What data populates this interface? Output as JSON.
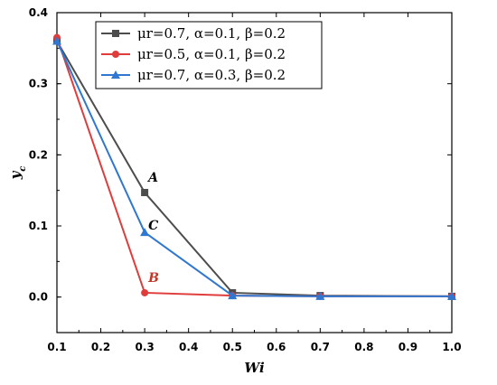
{
  "chart_data": {
    "type": "line",
    "xlabel": "Wi",
    "ylabel": "y_c",
    "xlim": [
      0.1,
      1.0
    ],
    "ylim": [
      -0.05,
      0.4
    ],
    "xticks": [
      "0.1",
      "0.2",
      "0.3",
      "0.4",
      "0.5",
      "0.6",
      "0.7",
      "0.8",
      "0.9",
      "1.0"
    ],
    "yticks": [
      "0.0",
      "0.1",
      "0.2",
      "0.3",
      "0.4"
    ],
    "grid": false,
    "legend_position": "top-right",
    "series": [
      {
        "name": "μr=0.7,  α=0.1,  β=0.2",
        "color": "#4d4d4d",
        "marker": "square",
        "x": [
          0.1,
          0.3,
          0.5,
          0.7,
          1.0
        ],
        "y": [
          0.36,
          0.147,
          0.006,
          0.002,
          0.001
        ]
      },
      {
        "name": "μr=0.5,  α=0.1,  β=0.2",
        "color": "#e03c3c",
        "marker": "circle",
        "x": [
          0.1,
          0.3,
          0.5,
          0.7,
          1.0
        ],
        "y": [
          0.365,
          0.006,
          0.002,
          0.001,
          0.001
        ]
      },
      {
        "name": "μr=0.7,  α=0.3,  β=0.2",
        "color": "#2f77d0",
        "marker": "triangle",
        "x": [
          0.1,
          0.3,
          0.5,
          0.7,
          1.0
        ],
        "y": [
          0.36,
          0.091,
          0.002,
          0.001,
          0.001
        ]
      }
    ],
    "annotations": [
      {
        "text": "A",
        "x": 0.3,
        "y": 0.147,
        "color": "#000000"
      },
      {
        "text": "B",
        "x": 0.3,
        "y": 0.006,
        "color": "#c0392b"
      },
      {
        "text": "C",
        "x": 0.3,
        "y": 0.091,
        "color": "#000000"
      }
    ]
  }
}
